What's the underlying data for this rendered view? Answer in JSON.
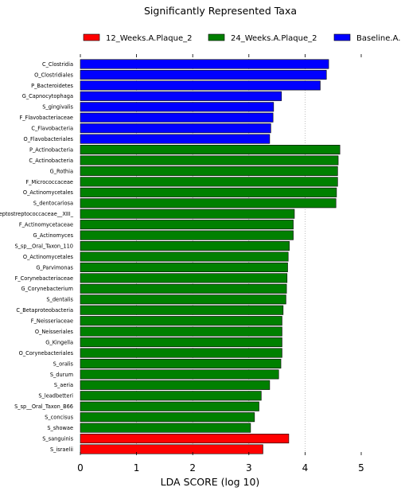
{
  "chart_data": {
    "type": "bar",
    "orientation": "horizontal",
    "title": "Significantly Represented Taxa",
    "xlabel": "LDA SCORE (log 10)",
    "ylabel": "",
    "xlim": [
      0,
      5
    ],
    "xticks": [
      "0",
      "1",
      "2",
      "3",
      "4",
      "5"
    ],
    "grid": "vertical-dotted",
    "legend_position": "top",
    "legend": [
      {
        "name": "12_Weeks.A.Plaque_2",
        "color": "#ff0000"
      },
      {
        "name": "24_Weeks.A.Plaque_2",
        "color": "#008000"
      },
      {
        "name": "Baseline.A.",
        "color": "#0000ff"
      }
    ],
    "bars": [
      {
        "label": "C_Clostridia",
        "value": 4.42,
        "group": 2
      },
      {
        "label": "O_Clostridiales",
        "value": 4.38,
        "group": 2
      },
      {
        "label": "P_Bacteroidetes",
        "value": 4.27,
        "group": 2
      },
      {
        "label": "G_Capnocytophaga",
        "value": 3.58,
        "group": 2
      },
      {
        "label": "S_gingivalis",
        "value": 3.44,
        "group": 2
      },
      {
        "label": "F_Flavobacteriaceae",
        "value": 3.43,
        "group": 2
      },
      {
        "label": "C_Flavobacteria",
        "value": 3.39,
        "group": 2
      },
      {
        "label": "O_Flavobacteriales",
        "value": 3.37,
        "group": 2
      },
      {
        "label": "P_Actinobacteria",
        "value": 4.62,
        "group": 1
      },
      {
        "label": "C_Actinobacteria",
        "value": 4.59,
        "group": 1
      },
      {
        "label": "G_Rothia",
        "value": 4.58,
        "group": 1
      },
      {
        "label": "F_Micrococcaceae",
        "value": 4.58,
        "group": 1
      },
      {
        "label": "O_Actinomycetales",
        "value": 4.56,
        "group": 1
      },
      {
        "label": "S_dentocariosa",
        "value": 4.55,
        "group": 1
      },
      {
        "label": "F_Peptostreptococcaceae__XIII_",
        "value": 3.81,
        "group": 1
      },
      {
        "label": "F_Actinomycetaceae",
        "value": 3.79,
        "group": 1
      },
      {
        "label": "G_Actinomyces",
        "value": 3.79,
        "group": 1
      },
      {
        "label": "S_sp__Oral_Taxon_110",
        "value": 3.72,
        "group": 1
      },
      {
        "label": "O_Actinomycetales",
        "value": 3.7,
        "group": 1
      },
      {
        "label": "G_Parvimonas",
        "value": 3.69,
        "group": 1
      },
      {
        "label": "F_Corynebacteriaceae",
        "value": 3.68,
        "group": 1
      },
      {
        "label": "G_Corynebacterium",
        "value": 3.67,
        "group": 1
      },
      {
        "label": "S_dentalis",
        "value": 3.66,
        "group": 1
      },
      {
        "label": "C_Betaproteobacteria",
        "value": 3.61,
        "group": 1
      },
      {
        "label": "F_Neisseriaceae",
        "value": 3.59,
        "group": 1
      },
      {
        "label": "O_Neisseriales",
        "value": 3.59,
        "group": 1
      },
      {
        "label": "G_Kingella",
        "value": 3.59,
        "group": 1
      },
      {
        "label": "O_Corynebacteriales",
        "value": 3.59,
        "group": 1
      },
      {
        "label": "S_oralis",
        "value": 3.57,
        "group": 1
      },
      {
        "label": "S_durum",
        "value": 3.53,
        "group": 1
      },
      {
        "label": "S_aeria",
        "value": 3.37,
        "group": 1
      },
      {
        "label": "S_leadbetteri",
        "value": 3.22,
        "group": 1
      },
      {
        "label": "S_sp__Oral_Taxon_B66",
        "value": 3.18,
        "group": 1
      },
      {
        "label": "S_concisus",
        "value": 3.1,
        "group": 1
      },
      {
        "label": "S_showae",
        "value": 3.03,
        "group": 1
      },
      {
        "label": "S_sanguinis",
        "value": 3.71,
        "group": 0
      },
      {
        "label": "S_israelii",
        "value": 3.25,
        "group": 0
      }
    ]
  }
}
